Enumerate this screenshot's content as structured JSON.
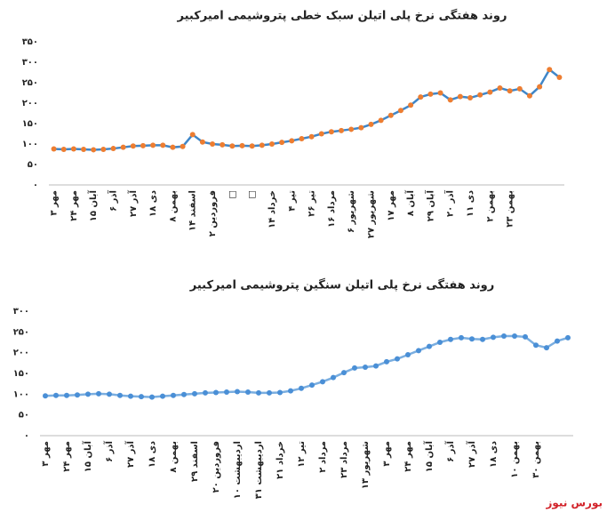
{
  "chart_data": [
    {
      "type": "line",
      "title": "روند هفتگی نرخ پلی اتیلن سبک خطی پتروشیمی امیرکبیر",
      "categories": [
        "۳ مهر",
        null,
        "۲۴ مهر",
        null,
        "۱۵ آبان",
        null,
        "۶ آذر",
        null,
        "۲۷ آذر",
        null,
        "۱۸ دی",
        null,
        "۸ بهمن",
        null,
        "۱۴ اسفند",
        null,
        "۲ فروردین",
        null,
        "□",
        null,
        "□",
        null,
        "۱۴ خرداد",
        null,
        "۴ تیر",
        null,
        "۲۶ تیر",
        null,
        "۱۶ مرداد",
        null,
        "۶ شهریور",
        null,
        "۲۷ شهریور",
        null,
        "۱۷ مهر",
        null,
        "۸ آبان",
        null,
        "۲۹ آبان",
        null,
        "۲۰ آذر",
        null,
        "۱۱ دی",
        null,
        "۲ بهمن",
        null,
        "۲۳ بهمن",
        null,
        null,
        null,
        null,
        null
      ],
      "values": [
        88,
        87,
        88,
        87,
        86,
        87,
        89,
        92,
        95,
        96,
        97,
        97,
        92,
        94,
        123,
        105,
        100,
        98,
        95,
        96,
        95,
        97,
        100,
        104,
        108,
        113,
        118,
        125,
        130,
        133,
        136,
        140,
        148,
        158,
        170,
        182,
        195,
        215,
        222,
        225,
        208,
        216,
        213,
        220,
        227,
        237,
        230,
        235,
        218,
        240,
        282,
        263
      ],
      "color": "#3f86c8",
      "marker_color": "#ed7d31",
      "ylim": [
        0,
        350
      ],
      "yticks": [
        {
          "value": 0,
          "label": "۰"
        },
        {
          "value": 50,
          "label": "۵۰"
        },
        {
          "value": 100,
          "label": "۱۰۰"
        },
        {
          "value": 150,
          "label": "۱۵۰"
        },
        {
          "value": 200,
          "label": "۲۰۰"
        },
        {
          "value": 250,
          "label": "۲۵۰"
        },
        {
          "value": 300,
          "label": "۳۰۰"
        },
        {
          "value": 350,
          "label": "۳۵۰"
        }
      ]
    },
    {
      "type": "line",
      "title": "روند هفتگی نرخ پلی اتیلن سنگین پتروشیمی امیرکبیر",
      "categories": [
        "۳ مهر",
        null,
        "۲۴ مهر",
        null,
        "۱۵ آبان",
        null,
        "۶ آذر",
        null,
        "۲۷ آذر",
        null,
        "۱۸ دی",
        null,
        "۸ بهمن",
        null,
        "۲۹ اسفند",
        null,
        "۲۰ فروردین",
        null,
        "۱۰ اردیبهشت",
        null,
        "۳۱ اردیبهشت",
        null,
        "۲۱ خرداد",
        null,
        "۱۲ تیر",
        null,
        "۲ مرداد",
        null,
        "۲۳ مرداد",
        null,
        "۱۳ شهریور",
        null,
        "۳ مهر",
        null,
        "۲۴ مهر",
        null,
        "۱۵ آبان",
        null,
        "۶ آذر",
        null,
        "۲۷ آذر",
        null,
        "۱۸ دی",
        null,
        "۱۰ بهمن",
        null,
        "۳۰ بهمن",
        null,
        null,
        null
      ],
      "values": [
        96,
        97,
        97,
        98,
        100,
        101,
        100,
        97,
        95,
        94,
        93,
        95,
        97,
        99,
        101,
        103,
        104,
        105,
        106,
        105,
        103,
        103,
        104,
        108,
        114,
        122,
        130,
        140,
        152,
        163,
        165,
        168,
        178,
        185,
        195,
        205,
        215,
        225,
        232,
        236,
        233,
        232,
        237,
        240,
        240,
        238,
        218,
        212,
        228,
        236
      ],
      "color": "#7aaee0",
      "marker_color": "#4a8fd6",
      "ylim": [
        0,
        300
      ],
      "yticks": [
        {
          "value": 0,
          "label": "۰"
        },
        {
          "value": 50,
          "label": "۵۰"
        },
        {
          "value": 100,
          "label": "۱۰۰"
        },
        {
          "value": 150,
          "label": "۱۵۰"
        },
        {
          "value": 200,
          "label": "۲۰۰"
        },
        {
          "value": 250,
          "label": "۲۵۰"
        },
        {
          "value": 300,
          "label": "۳۰۰"
        }
      ]
    }
  ],
  "footer": "بورس نیوز"
}
